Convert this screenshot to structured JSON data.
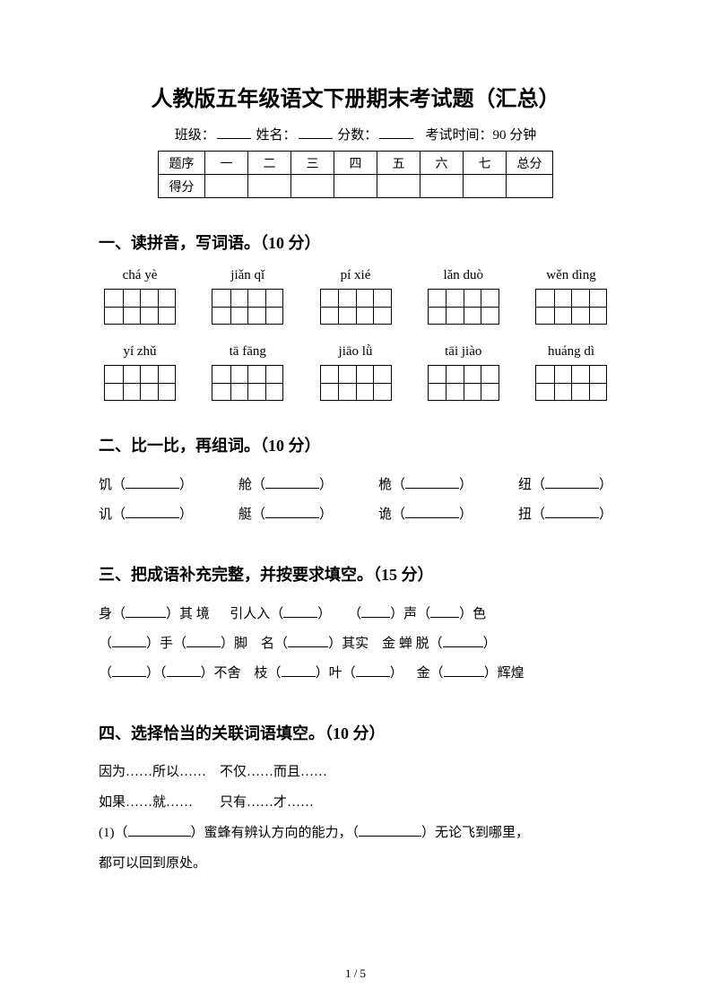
{
  "title": "人教版五年级语文下册期末考试题（汇总）",
  "meta": {
    "class_label": "班级：",
    "name_label": "姓名：",
    "score_label": "分数：",
    "time_label": "考试时间：90 分钟"
  },
  "score_table": {
    "row1": [
      "题序",
      "一",
      "二",
      "三",
      "四",
      "五",
      "六",
      "七",
      "总分"
    ],
    "row2_label": "得分"
  },
  "sec1": {
    "heading": "一、读拼音，写词语。（10 分）",
    "row1": [
      "chá yè",
      "jiǎn qǐ",
      "pí xié",
      "lǎn duò",
      "wěn dìng"
    ],
    "row2": [
      "yí zhǔ",
      "tā fāng",
      "jiāo lǜ",
      "tāi jiào",
      "huáng dì"
    ]
  },
  "sec2": {
    "heading": "二、比一比，再组词。（10 分）",
    "rows": [
      [
        "饥（",
        "）",
        "舱（",
        "）",
        "桅（",
        "）",
        "纽（",
        "）"
      ],
      [
        "讥（",
        "）",
        "艇（",
        "）",
        "诡（",
        "）",
        "扭（",
        "）"
      ]
    ]
  },
  "sec3": {
    "heading": "三、把成语补充完整，并按要求填空。（15 分）",
    "line1a": "身（",
    "line1b": "）其 境",
    "line1c": "引人入（",
    "line1d": "）",
    "line1e": "（",
    "line1f": "）声（",
    "line1g": "）色",
    "line2a": "（",
    "line2b": "）手（",
    "line2c": "）脚",
    "line2d": "名（",
    "line2e": "）其实",
    "line2f": "金 蝉 脱（",
    "line2g": "）",
    "line3a": "（",
    "line3b": "）（",
    "line3c": "）不舍",
    "line3d": "枝（",
    "line3e": "）叶（",
    "line3f": "）",
    "line3g": "金（",
    "line3h": "）辉煌"
  },
  "sec4": {
    "heading": "四、选择恰当的关联词语填空。（10 分）",
    "opt1": "因为……所以……　不仅……而且……",
    "opt2": "如果……就……　　只有……才……",
    "q1a": "(1)（",
    "q1b": "）蜜蜂有辨认方向的能力，（",
    "q1c": "）无论飞到哪里，",
    "q1d": "都可以回到原处。"
  },
  "page_num": "1 / 5"
}
